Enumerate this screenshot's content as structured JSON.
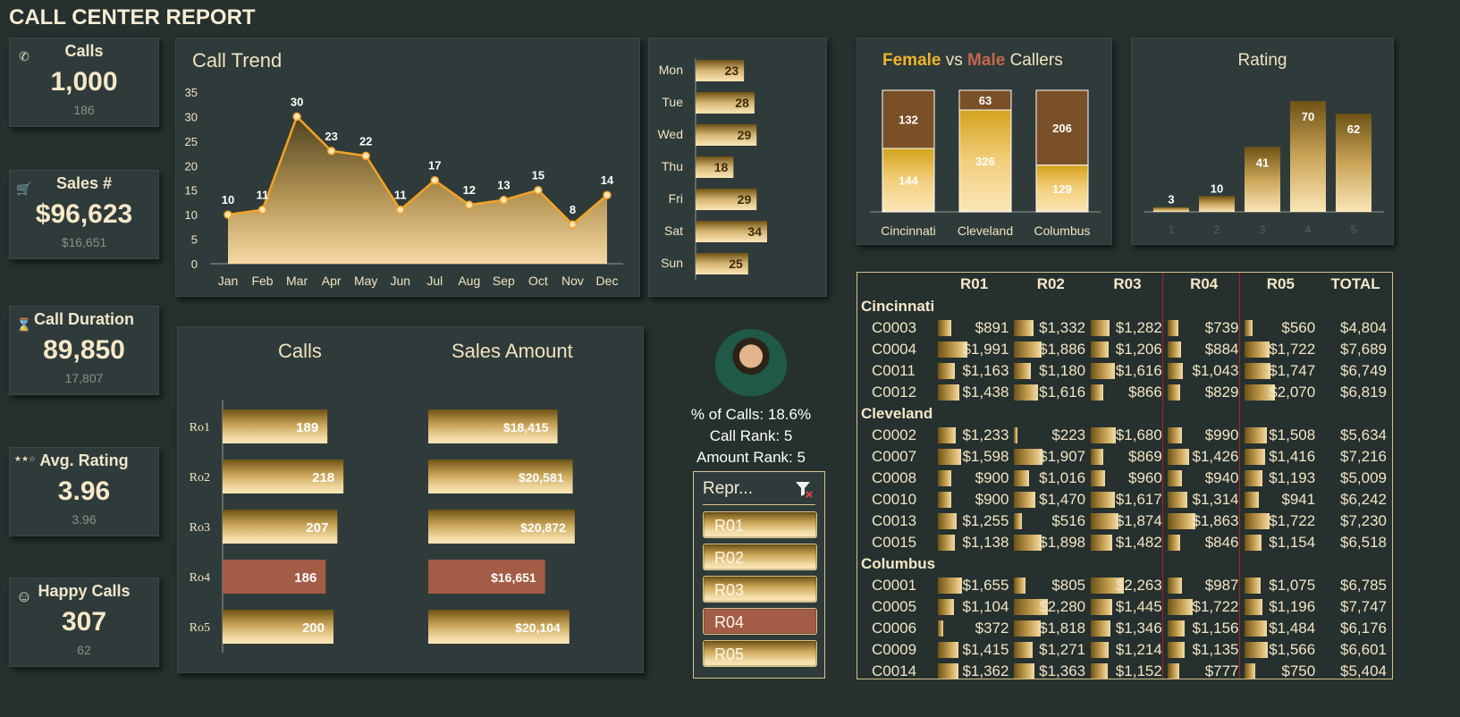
{
  "header": {
    "title": "CALL CENTER REPORT"
  },
  "kpis": [
    {
      "label": "Calls",
      "value": "1,000",
      "sub": "186",
      "icon": "phone-icon"
    },
    {
      "label": "Sales #",
      "value": "$96,623",
      "sub": "$16,651",
      "icon": "cart-icon"
    },
    {
      "label": "Call Duration",
      "value": "89,850",
      "sub": "17,807",
      "icon": "hourglass-icon"
    },
    {
      "label": "Avg. Rating",
      "value": "3.96",
      "sub": "3.96",
      "icon": "stars-icon"
    },
    {
      "label": "Happy Calls",
      "value": "307",
      "sub": "62",
      "icon": "smiley-icon"
    }
  ],
  "trend": {
    "title": "Call Trend",
    "y_ticks": [
      "35",
      "30",
      "25",
      "20",
      "15",
      "10",
      "5",
      "0"
    ]
  },
  "days": {
    "labels": [
      "Mon",
      "Tue",
      "Wed",
      "Thu",
      "Fri",
      "Sat",
      "Sun"
    ],
    "values": [
      "23",
      "28",
      "29",
      "18",
      "29",
      "34",
      "25"
    ]
  },
  "gender": {
    "title_female": "Female",
    "title_vs": " vs ",
    "title_male": "Male",
    "title_callers": " Callers"
  },
  "rating": {
    "title": "Rating"
  },
  "reps": {
    "calls_title": "Calls",
    "sales_title": "Sales Amount",
    "labels": [
      "Ro1",
      "Ro2",
      "Ro3",
      "Ro4",
      "Ro5"
    ],
    "calls": [
      "189",
      "218",
      "207",
      "186",
      "200"
    ],
    "sales": [
      "$18,415",
      "$20,581",
      "$20,872",
      "$16,651",
      "$20,104"
    ]
  },
  "profile": {
    "pct": "% of Calls: 18.6%",
    "call_rank": "Call Rank: 5",
    "amount_rank": "Amount Rank: 5"
  },
  "slicer": {
    "title": "Repr...",
    "items": [
      "R01",
      "R02",
      "R03",
      "R04",
      "R05"
    ],
    "selected": "R04"
  },
  "matrix": {
    "headers": [
      "R01",
      "R02",
      "R03",
      "R04",
      "R05",
      "TOTAL"
    ],
    "groups": [
      {
        "name": "Cincinnati",
        "rows": [
          {
            "id": "C0003",
            "v": [
              "$891",
              "$1,332",
              "$1,282",
              "$739",
              "$560"
            ],
            "t": "$4,804"
          },
          {
            "id": "C0004",
            "v": [
              "$1,991",
              "$1,886",
              "$1,206",
              "$884",
              "$1,722"
            ],
            "t": "$7,689"
          },
          {
            "id": "C0011",
            "v": [
              "$1,163",
              "$1,180",
              "$1,616",
              "$1,043",
              "$1,747"
            ],
            "t": "$6,749"
          },
          {
            "id": "C0012",
            "v": [
              "$1,438",
              "$1,616",
              "$866",
              "$829",
              "$2,070"
            ],
            "t": "$6,819"
          }
        ]
      },
      {
        "name": "Cleveland",
        "rows": [
          {
            "id": "C0002",
            "v": [
              "$1,233",
              "$223",
              "$1,680",
              "$990",
              "$1,508"
            ],
            "t": "$5,634"
          },
          {
            "id": "C0007",
            "v": [
              "$1,598",
              "$1,907",
              "$869",
              "$1,426",
              "$1,416"
            ],
            "t": "$7,216"
          },
          {
            "id": "C0008",
            "v": [
              "$900",
              "$1,016",
              "$960",
              "$940",
              "$1,193"
            ],
            "t": "$5,009"
          },
          {
            "id": "C0010",
            "v": [
              "$900",
              "$1,470",
              "$1,617",
              "$1,314",
              "$941"
            ],
            "t": "$6,242"
          },
          {
            "id": "C0013",
            "v": [
              "$1,255",
              "$516",
              "$1,874",
              "$1,863",
              "$1,722"
            ],
            "t": "$7,230"
          },
          {
            "id": "C0015",
            "v": [
              "$1,138",
              "$1,898",
              "$1,482",
              "$846",
              "$1,154"
            ],
            "t": "$6,518"
          }
        ]
      },
      {
        "name": "Columbus",
        "rows": [
          {
            "id": "C0001",
            "v": [
              "$1,655",
              "$805",
              "$2,263",
              "$987",
              "$1,075"
            ],
            "t": "$6,785"
          },
          {
            "id": "C0005",
            "v": [
              "$1,104",
              "$2,280",
              "$1,445",
              "$1,722",
              "$1,196"
            ],
            "t": "$7,747"
          },
          {
            "id": "C0006",
            "v": [
              "$372",
              "$1,818",
              "$1,346",
              "$1,156",
              "$1,484"
            ],
            "t": "$6,176"
          },
          {
            "id": "C0009",
            "v": [
              "$1,415",
              "$1,271",
              "$1,214",
              "$1,135",
              "$1,566"
            ],
            "t": "$6,601"
          },
          {
            "id": "C0014",
            "v": [
              "$1,362",
              "$1,363",
              "$1,152",
              "$777",
              "$750"
            ],
            "t": "$5,404"
          }
        ]
      }
    ]
  },
  "colors": {
    "gold": "#f3a326",
    "female": "#f0b429",
    "male": "#c4664d",
    "selected": "#a35c46",
    "background": "#25302f",
    "panel": "#2f3b3a"
  },
  "chart_data": [
    {
      "type": "area",
      "title": "Call Trend",
      "categories": [
        "Jan",
        "Feb",
        "Mar",
        "Apr",
        "May",
        "Jun",
        "Jul",
        "Aug",
        "Sep",
        "Oct",
        "Nov",
        "Dec"
      ],
      "values": [
        10,
        11,
        30,
        23,
        22,
        11,
        17,
        12,
        13,
        15,
        8,
        14
      ],
      "ylim": [
        0,
        35
      ]
    },
    {
      "type": "bar",
      "orientation": "horizontal",
      "categories": [
        "Mon",
        "Tue",
        "Wed",
        "Thu",
        "Fri",
        "Sat",
        "Sun"
      ],
      "values": [
        23,
        28,
        29,
        18,
        29,
        34,
        25
      ]
    },
    {
      "type": "bar",
      "stacked": true,
      "title": "Female vs Male Callers",
      "categories": [
        "Cincinnati",
        "Cleveland",
        "Columbus"
      ],
      "series": [
        {
          "name": "Female",
          "values": [
            144,
            326,
            129
          ]
        },
        {
          "name": "Male",
          "values": [
            132,
            63,
            206
          ]
        }
      ]
    },
    {
      "type": "bar",
      "title": "Rating",
      "categories": [
        "1",
        "2",
        "3",
        "4",
        "5"
      ],
      "values": [
        3,
        10,
        41,
        70,
        62
      ]
    },
    {
      "type": "bar",
      "orientation": "horizontal",
      "title": "Calls",
      "categories": [
        "Ro1",
        "Ro2",
        "Ro3",
        "Ro4",
        "Ro5"
      ],
      "values": [
        189,
        218,
        207,
        186,
        200
      ]
    },
    {
      "type": "bar",
      "orientation": "horizontal",
      "title": "Sales Amount",
      "categories": [
        "Ro1",
        "Ro2",
        "Ro3",
        "Ro4",
        "Ro5"
      ],
      "values": [
        18415,
        20581,
        20872,
        16651,
        20104
      ]
    }
  ]
}
